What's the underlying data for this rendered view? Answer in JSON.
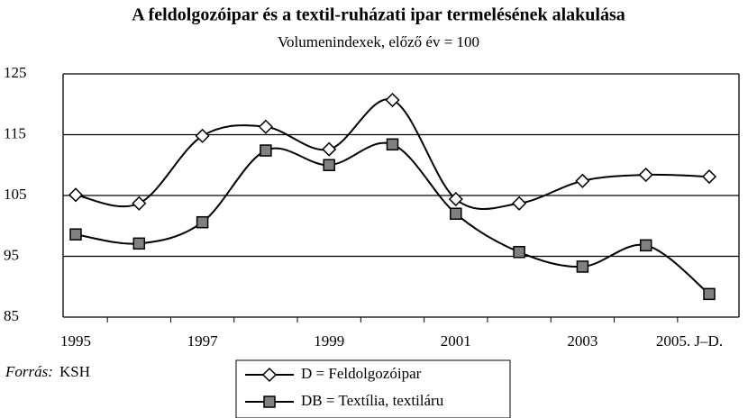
{
  "chart_data": {
    "type": "line",
    "title": "A feldolgozóipar és a textil-ruházati ipar termelésének alakulása",
    "subtitle": "Volumenindexek, előző év = 100",
    "categories": [
      "1995",
      null,
      "1997",
      null,
      "1999",
      null,
      "2001",
      null,
      "2003",
      null,
      "2005. J–D."
    ],
    "series": [
      {
        "name": "D = Feldolgozóipar",
        "color": "#000000",
        "marker": "diamond",
        "values": [
          105.1,
          103.7,
          114.8,
          116.3,
          112.6,
          120.7,
          104.4,
          103.7,
          107.4,
          108.4,
          108.1
        ]
      },
      {
        "name": "DB = Textília, textiláru",
        "color": "#000000",
        "marker": "square",
        "values": [
          98.6,
          97.1,
          100.6,
          112.4,
          110.0,
          113.4,
          102.0,
          95.7,
          93.3,
          96.8,
          88.8
        ]
      }
    ],
    "ylim": [
      85,
      125
    ],
    "yticks": [
      85,
      95,
      105,
      115,
      125
    ],
    "grid": true,
    "source_label": "Forrás:",
    "source": "KSH"
  }
}
